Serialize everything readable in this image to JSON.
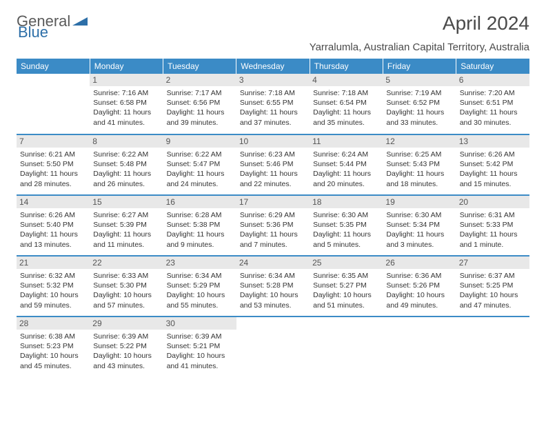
{
  "logo": {
    "text1": "General",
    "text2": "Blue",
    "color1": "#6a6a6a",
    "color2": "#2d6fa8"
  },
  "title": "April 2024",
  "subtitle": "Yarralumla, Australian Capital Territory, Australia",
  "colors": {
    "header_bg": "#3b8bc6",
    "header_text": "#ffffff",
    "daybar_bg": "#e8e8e8",
    "border": "#3b8bc6"
  },
  "days_of_week": [
    "Sunday",
    "Monday",
    "Tuesday",
    "Wednesday",
    "Thursday",
    "Friday",
    "Saturday"
  ],
  "weeks": [
    [
      null,
      {
        "n": "1",
        "sr": "7:16 AM",
        "ss": "6:58 PM",
        "dl": "11 hours and 41 minutes."
      },
      {
        "n": "2",
        "sr": "7:17 AM",
        "ss": "6:56 PM",
        "dl": "11 hours and 39 minutes."
      },
      {
        "n": "3",
        "sr": "7:18 AM",
        "ss": "6:55 PM",
        "dl": "11 hours and 37 minutes."
      },
      {
        "n": "4",
        "sr": "7:18 AM",
        "ss": "6:54 PM",
        "dl": "11 hours and 35 minutes."
      },
      {
        "n": "5",
        "sr": "7:19 AM",
        "ss": "6:52 PM",
        "dl": "11 hours and 33 minutes."
      },
      {
        "n": "6",
        "sr": "7:20 AM",
        "ss": "6:51 PM",
        "dl": "11 hours and 30 minutes."
      }
    ],
    [
      {
        "n": "7",
        "sr": "6:21 AM",
        "ss": "5:50 PM",
        "dl": "11 hours and 28 minutes."
      },
      {
        "n": "8",
        "sr": "6:22 AM",
        "ss": "5:48 PM",
        "dl": "11 hours and 26 minutes."
      },
      {
        "n": "9",
        "sr": "6:22 AM",
        "ss": "5:47 PM",
        "dl": "11 hours and 24 minutes."
      },
      {
        "n": "10",
        "sr": "6:23 AM",
        "ss": "5:46 PM",
        "dl": "11 hours and 22 minutes."
      },
      {
        "n": "11",
        "sr": "6:24 AM",
        "ss": "5:44 PM",
        "dl": "11 hours and 20 minutes."
      },
      {
        "n": "12",
        "sr": "6:25 AM",
        "ss": "5:43 PM",
        "dl": "11 hours and 18 minutes."
      },
      {
        "n": "13",
        "sr": "6:26 AM",
        "ss": "5:42 PM",
        "dl": "11 hours and 15 minutes."
      }
    ],
    [
      {
        "n": "14",
        "sr": "6:26 AM",
        "ss": "5:40 PM",
        "dl": "11 hours and 13 minutes."
      },
      {
        "n": "15",
        "sr": "6:27 AM",
        "ss": "5:39 PM",
        "dl": "11 hours and 11 minutes."
      },
      {
        "n": "16",
        "sr": "6:28 AM",
        "ss": "5:38 PM",
        "dl": "11 hours and 9 minutes."
      },
      {
        "n": "17",
        "sr": "6:29 AM",
        "ss": "5:36 PM",
        "dl": "11 hours and 7 minutes."
      },
      {
        "n": "18",
        "sr": "6:30 AM",
        "ss": "5:35 PM",
        "dl": "11 hours and 5 minutes."
      },
      {
        "n": "19",
        "sr": "6:30 AM",
        "ss": "5:34 PM",
        "dl": "11 hours and 3 minutes."
      },
      {
        "n": "20",
        "sr": "6:31 AM",
        "ss": "5:33 PM",
        "dl": "11 hours and 1 minute."
      }
    ],
    [
      {
        "n": "21",
        "sr": "6:32 AM",
        "ss": "5:32 PM",
        "dl": "10 hours and 59 minutes."
      },
      {
        "n": "22",
        "sr": "6:33 AM",
        "ss": "5:30 PM",
        "dl": "10 hours and 57 minutes."
      },
      {
        "n": "23",
        "sr": "6:34 AM",
        "ss": "5:29 PM",
        "dl": "10 hours and 55 minutes."
      },
      {
        "n": "24",
        "sr": "6:34 AM",
        "ss": "5:28 PM",
        "dl": "10 hours and 53 minutes."
      },
      {
        "n": "25",
        "sr": "6:35 AM",
        "ss": "5:27 PM",
        "dl": "10 hours and 51 minutes."
      },
      {
        "n": "26",
        "sr": "6:36 AM",
        "ss": "5:26 PM",
        "dl": "10 hours and 49 minutes."
      },
      {
        "n": "27",
        "sr": "6:37 AM",
        "ss": "5:25 PM",
        "dl": "10 hours and 47 minutes."
      }
    ],
    [
      {
        "n": "28",
        "sr": "6:38 AM",
        "ss": "5:23 PM",
        "dl": "10 hours and 45 minutes."
      },
      {
        "n": "29",
        "sr": "6:39 AM",
        "ss": "5:22 PM",
        "dl": "10 hours and 43 minutes."
      },
      {
        "n": "30",
        "sr": "6:39 AM",
        "ss": "5:21 PM",
        "dl": "10 hours and 41 minutes."
      },
      null,
      null,
      null,
      null
    ]
  ],
  "labels": {
    "sunrise": "Sunrise:",
    "sunset": "Sunset:",
    "daylight": "Daylight:"
  }
}
